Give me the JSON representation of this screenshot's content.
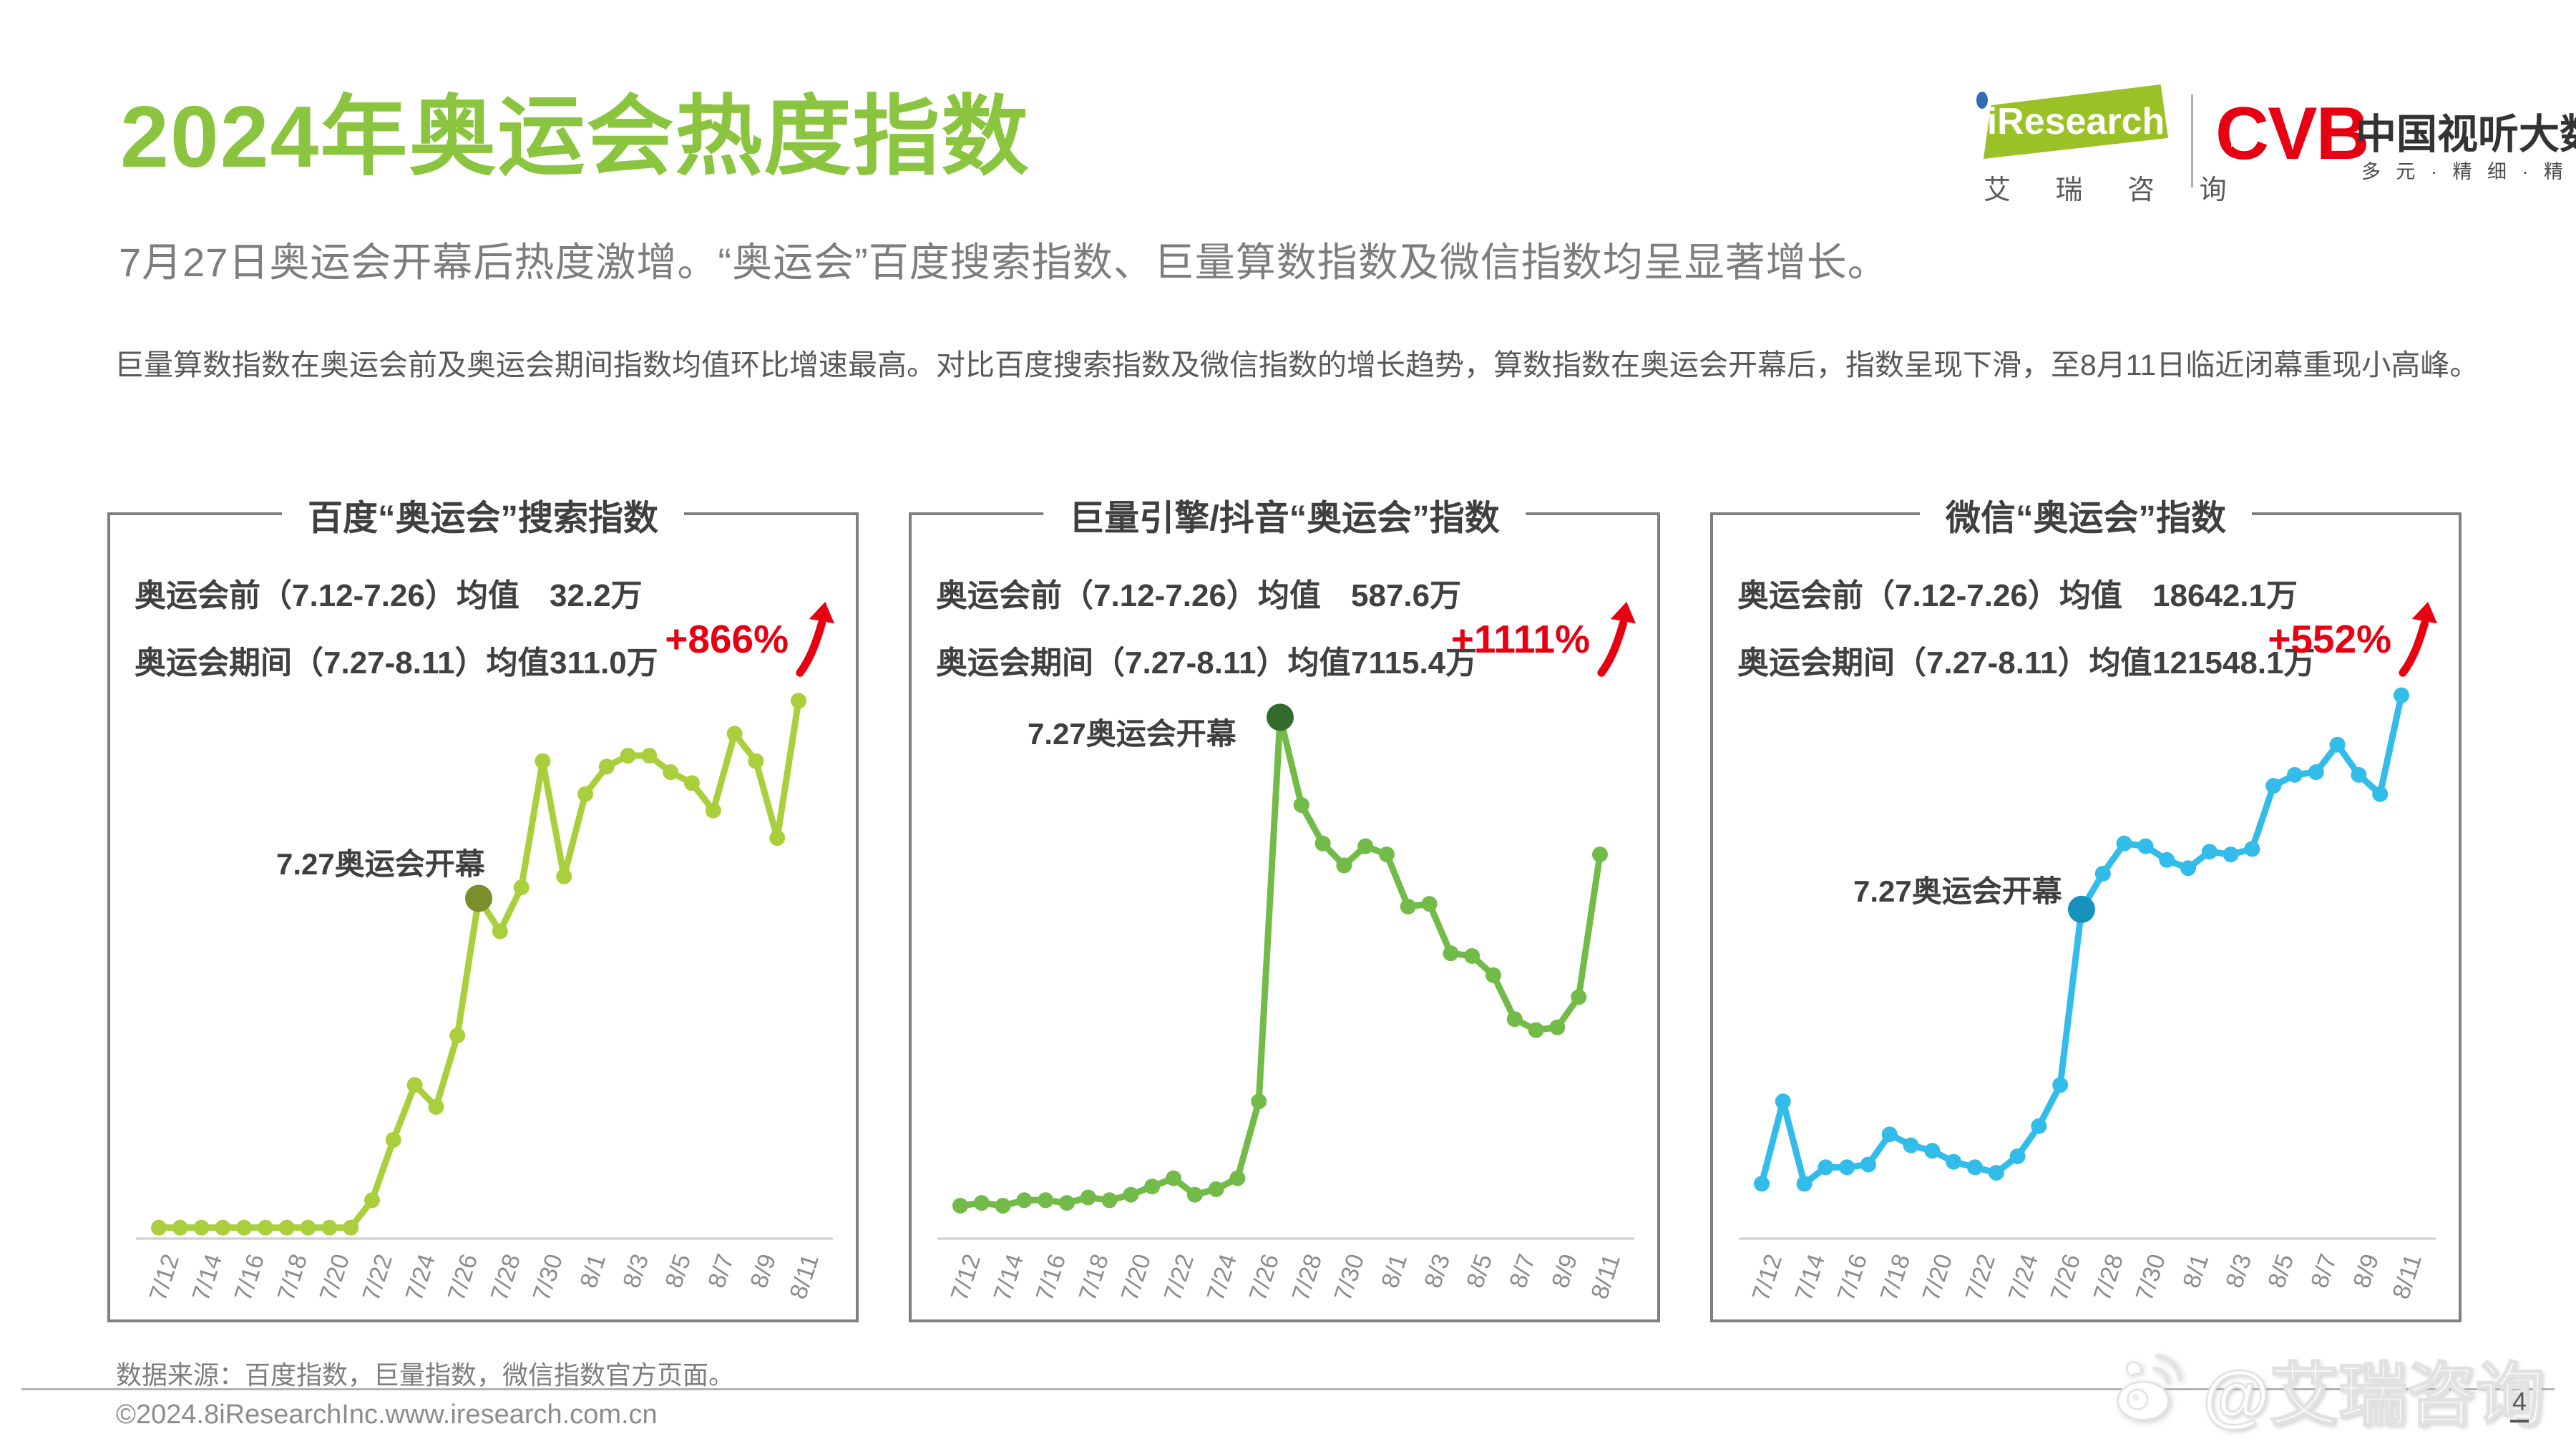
{
  "page": {
    "title": "2024年奥运会热度指数",
    "subtitle": "7月27日奥运会开幕后热度激增。“奥运会”百度搜索指数、巨量算数指数及微信指数均呈显著增长。",
    "body": "巨量算数指数在奥运会前及奥运会期间指数均值环比增速最高。对比百度搜索指数及微信指数的增长趋势，算数指数在奥运会开幕后，指数呈现下滑，至8月11日临近闭幕重现小高峰。",
    "source_note": "数据来源：百度指数，巨量指数，微信指数官方页面。",
    "copyright": "©2024.8iResearchInc.www.iresearch.com.cn",
    "page_number": "4",
    "watermark": "@艾瑞咨询"
  },
  "logos": {
    "iresearch_en": "iResearch",
    "iresearch_cn": "艾 瑞 咨 询",
    "cvb": "CVB",
    "cvb_cn": "中国视听大数据",
    "cvb_tagline": "多 元 · 精 细 · 精 准"
  },
  "colors": {
    "title_green": "#8bc53f",
    "growth_red": "#e60012",
    "box_border": "#7f7f7f",
    "axis_line": "#cccccc",
    "text_dark": "#404040",
    "text_gray": "#7d7d7d"
  },
  "chart_data": [
    {
      "type": "line",
      "title": "百度“奥运会”搜索指数",
      "pre_label": "奥运会前（7.12-7.26）均值",
      "pre_value": "32.2万",
      "during_label": "奥运会期间（7.27-8.11）均值",
      "during_value": "311.0万",
      "growth": "+866%",
      "annotation": "7.27奥运会开幕",
      "annotation_index": 15,
      "line_color": "#aacf3d",
      "marker_color": "#7a8f2b",
      "ylim": [
        0,
        100
      ],
      "y_axis_visible": false,
      "x_tick_step": 2,
      "categories": [
        "7/12",
        "7/13",
        "7/14",
        "7/15",
        "7/16",
        "7/17",
        "7/18",
        "7/19",
        "7/20",
        "7/21",
        "7/22",
        "7/23",
        "7/24",
        "7/25",
        "7/26",
        "7/27",
        "7/28",
        "7/29",
        "7/30",
        "7/31",
        "8/1",
        "8/2",
        "8/3",
        "8/4",
        "8/5",
        "8/6",
        "8/7",
        "8/8",
        "8/9",
        "8/10",
        "8/11"
      ],
      "values": [
        2,
        2,
        2,
        2,
        2,
        2,
        2,
        2,
        2,
        2,
        7,
        18,
        28,
        24,
        37,
        62,
        56,
        64,
        87,
        66,
        81,
        86,
        88,
        88,
        85,
        83,
        78,
        92,
        87,
        73,
        98
      ]
    },
    {
      "type": "line",
      "title": "巨量引擎/抖音“奥运会”指数",
      "pre_label": "奥运会前（7.12-7.26）均值",
      "pre_value": "587.6万",
      "during_label": "奥运会期间（7.27-8.11）均值",
      "during_value": "7115.4万",
      "growth": "+1111%",
      "annotation": "7.27奥运会开幕",
      "annotation_index": 15,
      "line_color": "#72bb49",
      "marker_color": "#336b2d",
      "ylim": [
        0,
        100
      ],
      "y_axis_visible": false,
      "x_tick_step": 2,
      "categories": [
        "7/12",
        "7/13",
        "7/14",
        "7/15",
        "7/16",
        "7/17",
        "7/18",
        "7/19",
        "7/20",
        "7/21",
        "7/22",
        "7/23",
        "7/24",
        "7/25",
        "7/26",
        "7/27",
        "7/28",
        "7/29",
        "7/30",
        "7/31",
        "8/1",
        "8/2",
        "8/3",
        "8/4",
        "8/5",
        "8/6",
        "8/7",
        "8/8",
        "8/9",
        "8/10",
        "8/11"
      ],
      "values": [
        6,
        6.5,
        6,
        7,
        7,
        6.5,
        7.5,
        7,
        8,
        9.5,
        11,
        8,
        9,
        11,
        25,
        95,
        79,
        72,
        68,
        71.5,
        70,
        60.5,
        61,
        52,
        51.5,
        48,
        40,
        38,
        38.5,
        44,
        70
      ]
    },
    {
      "type": "line",
      "title": "微信“奥运会”指数",
      "pre_label": "奥运会前（7.12-7.26）均值",
      "pre_value": "18642.1万",
      "during_label": "奥运会期间（7.27-8.11）均值",
      "during_value": "121548.1万",
      "growth": "+552%",
      "annotation": "7.27奥运会开幕",
      "annotation_index": 15,
      "line_color": "#31bce9",
      "marker_color": "#1792bd",
      "ylim": [
        0,
        100
      ],
      "y_axis_visible": false,
      "x_tick_step": 2,
      "categories": [
        "7/12",
        "7/13",
        "7/14",
        "7/15",
        "7/16",
        "7/17",
        "7/18",
        "7/19",
        "7/20",
        "7/21",
        "7/22",
        "7/23",
        "7/24",
        "7/25",
        "7/26",
        "7/27",
        "7/28",
        "7/29",
        "7/30",
        "7/31",
        "8/1",
        "8/2",
        "8/3",
        "8/4",
        "8/5",
        "8/6",
        "8/7",
        "8/8",
        "8/9",
        "8/10",
        "8/11"
      ],
      "values": [
        10,
        25,
        10,
        13,
        13,
        13.5,
        19,
        17,
        16,
        14,
        13,
        12,
        15,
        20.5,
        28,
        60,
        66.5,
        72,
        71.5,
        69,
        67.5,
        70.5,
        70,
        71,
        82.5,
        84.5,
        85,
        90,
        84.5,
        81,
        99
      ]
    }
  ]
}
